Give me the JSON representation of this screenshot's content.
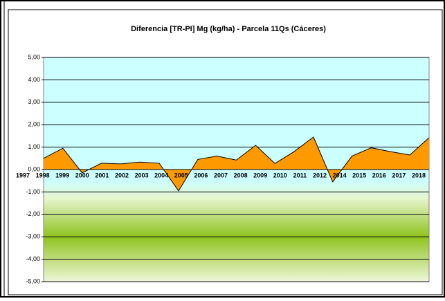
{
  "chart_data": {
    "type": "area",
    "title": "Diferencia [TR-PI] Mg (kg/ha) - Parcela 11Qs (Cáceres)",
    "categories": [
      "1997",
      "1998",
      "1999",
      "2000",
      "2001",
      "2002",
      "2003",
      "2004",
      "2005",
      "2006",
      "2007",
      "2008",
      "2009",
      "2010",
      "2011",
      "2012",
      "2014",
      "2015",
      "2016",
      "2017",
      "2018"
    ],
    "values": [
      0.5,
      0.95,
      -0.15,
      0.28,
      0.25,
      0.33,
      0.28,
      -0.95,
      0.45,
      0.6,
      0.42,
      1.08,
      0.27,
      0.8,
      1.45,
      -0.55,
      0.6,
      0.97,
      0.8,
      0.65,
      1.42
    ],
    "color": "#ff9900",
    "ylim": [
      -5,
      5
    ],
    "yticks": [
      {
        "value": -5,
        "label": "-5,00"
      },
      {
        "value": -4,
        "label": "-4,00"
      },
      {
        "value": -3,
        "label": "-3,00"
      },
      {
        "value": -2,
        "label": "-2,00"
      },
      {
        "value": -1,
        "label": "-1,00"
      },
      {
        "value": 0,
        "label": "0,00"
      },
      {
        "value": 1,
        "label": "1,00"
      },
      {
        "value": 2,
        "label": "2,00"
      },
      {
        "value": 3,
        "label": "3,00"
      },
      {
        "value": 4,
        "label": "4,00"
      },
      {
        "value": 5,
        "label": "5,00"
      }
    ],
    "grid": true
  }
}
